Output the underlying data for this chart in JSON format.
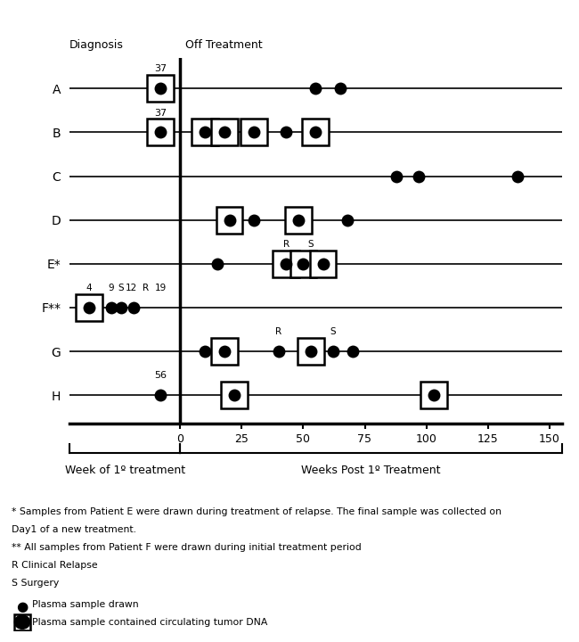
{
  "patients": [
    "A",
    "B",
    "C",
    "D",
    "E*",
    "F**",
    "G",
    "H"
  ],
  "xlim": [
    -45,
    155
  ],
  "x_ticks": [
    0,
    25,
    50,
    75,
    100,
    125,
    150
  ],
  "dot_size": 100,
  "dot_color": "#000000",
  "samples": {
    "A": {
      "dots": [
        -8,
        55,
        65
      ],
      "squares": [
        -8
      ]
    },
    "B": {
      "dots": [
        -8,
        10,
        18,
        30,
        43,
        55
      ],
      "squares": [
        -8,
        10,
        18,
        30,
        55
      ]
    },
    "C": {
      "dots": [
        88,
        97,
        137
      ],
      "squares": []
    },
    "D": {
      "dots": [
        20,
        30,
        48,
        68
      ],
      "squares": [
        20,
        48
      ]
    },
    "E*": {
      "dots": [
        15,
        43,
        50,
        58
      ],
      "squares": [
        43,
        50,
        58
      ]
    },
    "F**": {
      "dots": [
        -37,
        -28,
        -24,
        -19
      ],
      "squares": [
        -37
      ]
    },
    "G": {
      "dots": [
        10,
        18,
        40,
        53,
        62,
        70
      ],
      "squares": [
        18,
        53
      ]
    },
    "H": {
      "dots": [
        -8,
        22,
        103
      ],
      "squares": [
        22,
        103
      ]
    }
  },
  "number_labels": {
    "A": {
      "text": "37",
      "x": -8
    },
    "B": {
      "text": "37",
      "x": -8
    },
    "H": {
      "text": "56",
      "x": -8
    }
  },
  "extra_labels": {
    "E*": [
      {
        "text": "R",
        "x": 43
      },
      {
        "text": "S",
        "x": 53
      }
    ],
    "F**": [
      {
        "text": "4",
        "x": -37
      },
      {
        "text": "9",
        "x": -28
      },
      {
        "text": "S",
        "x": -24
      },
      {
        "text": "12",
        "x": -20
      },
      {
        "text": "R",
        "x": -14
      },
      {
        "text": "19",
        "x": -8
      }
    ],
    "G": [
      {
        "text": "R",
        "x": 40
      },
      {
        "text": "S",
        "x": 62
      }
    ]
  },
  "title_diagnosis": "Diagnosis",
  "title_off_treatment": "Off Treatment",
  "label_week": "Week of 1º treatment",
  "label_weeks_post": "Weeks Post 1º Treatment",
  "footnote1": "* Samples from Patient E were drawn during treatment of relapse. The final sample was collected on",
  "footnote2": "Day1 of a new treatment.",
  "footnote3": "** All samples from Patient F were drawn during initial treatment period",
  "footnote4": "R Clinical Relapse",
  "footnote5": "S Surgery",
  "legend_dot": "Plasma sample drawn",
  "legend_square": "Plasma sample contained circulating tumor DNA"
}
